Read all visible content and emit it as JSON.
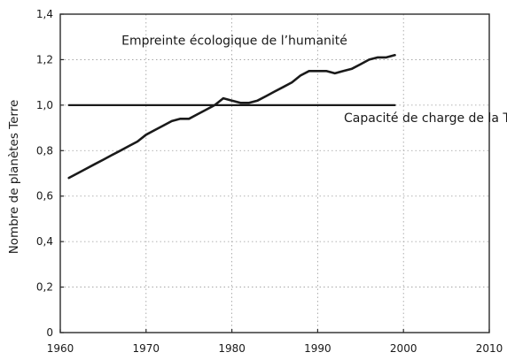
{
  "chart_data": {
    "type": "line",
    "title": "",
    "xlabel": "",
    "ylabel": "Nombre de planètes Terre",
    "xlim": [
      1960,
      2010
    ],
    "ylim": [
      0,
      1.4
    ],
    "xticks": [
      1960,
      1970,
      1980,
      1990,
      2000,
      2010
    ],
    "yticks": [
      0,
      0.2,
      0.4,
      0.6,
      0.8,
      1.0,
      1.2,
      1.4
    ],
    "ytick_labels": [
      "0",
      "0,2",
      "0,4",
      "0,6",
      "0,8",
      "1,0",
      "1,2",
      "1,4"
    ],
    "grid": true,
    "legend": "none",
    "series": [
      {
        "name": "Empreinte écologique de l'humanité",
        "color": "#1a1a1a",
        "x": [
          1961,
          1962,
          1963,
          1964,
          1965,
          1966,
          1967,
          1968,
          1969,
          1970,
          1971,
          1972,
          1973,
          1974,
          1975,
          1976,
          1977,
          1978,
          1979,
          1980,
          1981,
          1982,
          1983,
          1984,
          1985,
          1986,
          1987,
          1988,
          1989,
          1990,
          1991,
          1992,
          1993,
          1994,
          1995,
          1996,
          1997,
          1998,
          1999
        ],
        "y": [
          0.68,
          0.7,
          0.72,
          0.74,
          0.76,
          0.78,
          0.8,
          0.82,
          0.84,
          0.87,
          0.89,
          0.91,
          0.93,
          0.94,
          0.94,
          0.96,
          0.98,
          1.0,
          1.03,
          1.02,
          1.01,
          1.01,
          1.02,
          1.04,
          1.06,
          1.08,
          1.1,
          1.13,
          1.15,
          1.15,
          1.15,
          1.14,
          1.15,
          1.16,
          1.18,
          1.2,
          1.21,
          1.21,
          1.22
        ]
      },
      {
        "name": "Capacité de charge de la Terre",
        "color": "#1a1a1a",
        "x": [
          1961,
          1999
        ],
        "y": [
          1.0,
          1.0
        ]
      }
    ],
    "annotations": [
      {
        "text": "Empreinte écologique de l’humanité",
        "series": 0
      },
      {
        "text": "Capacité de charge de la Terre",
        "series": 1
      }
    ]
  }
}
